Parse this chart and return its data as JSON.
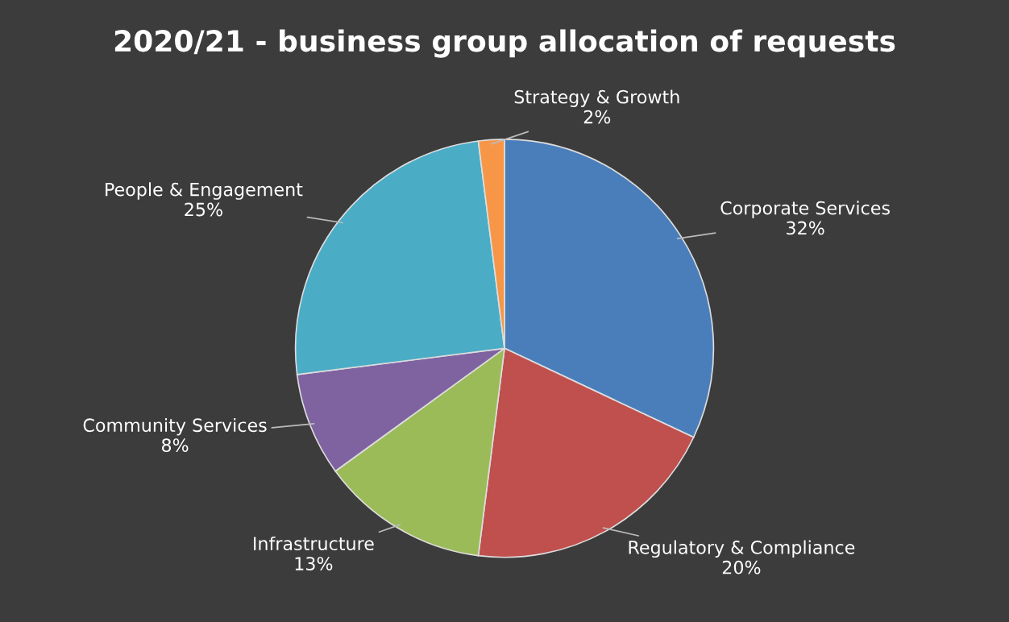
{
  "chart_data": {
    "type": "pie",
    "title": "2020/21 - business group allocation of requests",
    "categories": [
      "Corporate Services",
      "Regulatory & Compliance",
      "Infrastructure",
      "Community Services",
      "People & Engagement",
      "Strategy & Growth"
    ],
    "values": [
      32,
      20,
      13,
      8,
      25,
      2
    ],
    "value_labels": [
      "32%",
      "20%",
      "13%",
      "8%",
      "25%",
      "2%"
    ],
    "colors": [
      "#4a7ebb",
      "#c0504d",
      "#9bbb59",
      "#7f63a1",
      "#4bacc6",
      "#f79646"
    ]
  }
}
